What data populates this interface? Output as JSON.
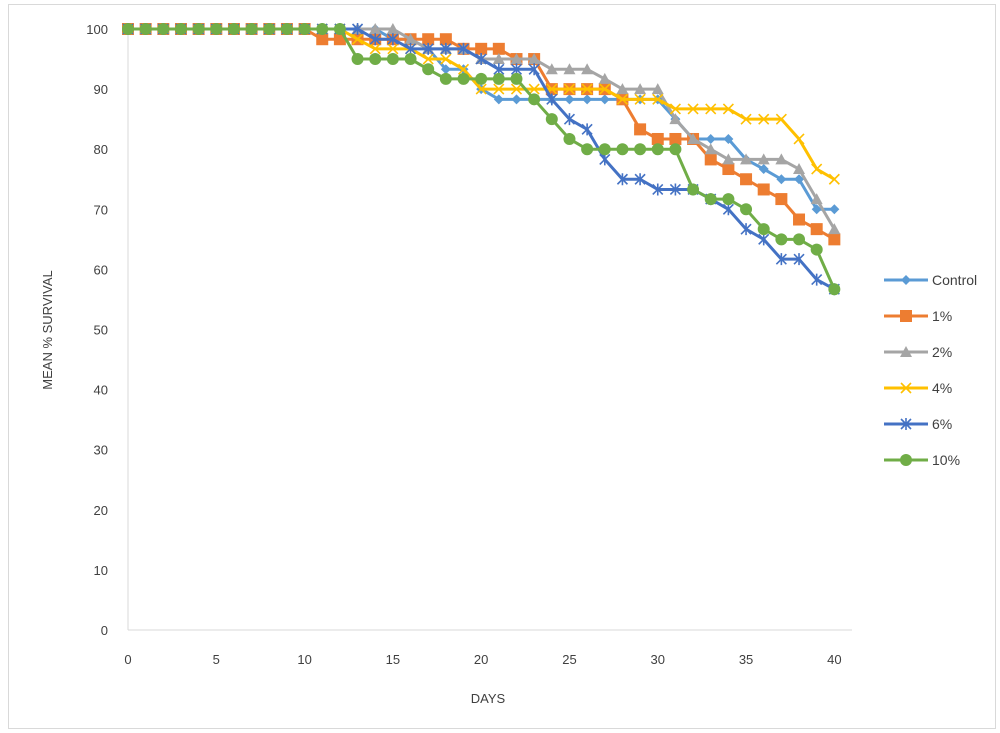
{
  "chart_data": {
    "type": "line",
    "title": "",
    "xlabel": "DAYS",
    "ylabel": "MEAN % SURVIVAL",
    "xlim": [
      0,
      41
    ],
    "ylim": [
      0,
      100
    ],
    "x_ticks": [
      0,
      5,
      10,
      15,
      20,
      25,
      30,
      35,
      40
    ],
    "y_ticks": [
      0,
      10,
      20,
      30,
      40,
      50,
      60,
      70,
      80,
      90,
      100
    ],
    "grid": false,
    "legend_position": "right",
    "x": [
      0,
      1,
      2,
      3,
      4,
      5,
      6,
      7,
      8,
      9,
      10,
      11,
      12,
      13,
      14,
      15,
      16,
      17,
      18,
      19,
      20,
      21,
      22,
      23,
      24,
      25,
      26,
      27,
      28,
      29,
      30,
      31,
      32,
      33,
      34,
      35,
      36,
      37,
      38,
      39,
      40
    ],
    "series": [
      {
        "name": "Control",
        "color": "#5b9bd5",
        "marker": "diamond",
        "values": [
          100,
          100,
          100,
          100,
          100,
          100,
          100,
          100,
          100,
          100,
          100,
          100,
          100,
          100,
          100,
          98.3,
          98.3,
          96.7,
          93.3,
          93.3,
          90,
          88.3,
          88.3,
          88.3,
          88.3,
          88.3,
          88.3,
          88.3,
          88.3,
          88.3,
          88.3,
          85,
          81.7,
          81.7,
          81.7,
          78.3,
          76.7,
          75,
          75,
          70,
          70
        ]
      },
      {
        "name": "1%",
        "color": "#ed7d31",
        "marker": "square",
        "values": [
          100,
          100,
          100,
          100,
          100,
          100,
          100,
          100,
          100,
          100,
          100,
          98.3,
          98.3,
          98.3,
          98.3,
          98.3,
          98.3,
          98.3,
          98.3,
          96.7,
          96.7,
          96.7,
          95,
          95,
          90,
          90,
          90,
          90,
          88.3,
          83.3,
          81.7,
          81.7,
          81.7,
          78.3,
          76.7,
          75,
          73.3,
          71.7,
          68.3,
          66.7,
          65
        ]
      },
      {
        "name": "2%",
        "color": "#a5a5a5",
        "marker": "triangle",
        "values": [
          100,
          100,
          100,
          100,
          100,
          100,
          100,
          100,
          100,
          100,
          100,
          100,
          100,
          100,
          100,
          100,
          98.3,
          96.7,
          96.7,
          96.7,
          95,
          95,
          95,
          95,
          93.3,
          93.3,
          93.3,
          91.7,
          90,
          90,
          90,
          85,
          81.7,
          80,
          78.3,
          78.3,
          78.3,
          78.3,
          76.7,
          71.7,
          66.7
        ]
      },
      {
        "name": "4%",
        "color": "#ffc000",
        "marker": "x",
        "values": [
          100,
          100,
          100,
          100,
          100,
          100,
          100,
          100,
          100,
          100,
          100,
          100,
          100,
          98.3,
          96.7,
          96.7,
          96.7,
          95,
          95,
          93.3,
          90,
          90,
          90,
          90,
          90,
          90,
          90,
          90,
          88.3,
          88.3,
          88.3,
          86.7,
          86.7,
          86.7,
          86.7,
          85,
          85,
          85,
          81.7,
          76.7,
          75
        ]
      },
      {
        "name": "6%",
        "color": "#4472c4",
        "marker": "star",
        "values": [
          100,
          100,
          100,
          100,
          100,
          100,
          100,
          100,
          100,
          100,
          100,
          100,
          100,
          100,
          98.3,
          98.3,
          96.7,
          96.7,
          96.7,
          96.7,
          95,
          93.3,
          93.3,
          93.3,
          88.3,
          85,
          83.3,
          78.3,
          75,
          75,
          73.3,
          73.3,
          73.3,
          71.7,
          70,
          66.7,
          65,
          61.7,
          61.7,
          58.3,
          56.7
        ]
      },
      {
        "name": "10%",
        "color": "#70ad47",
        "marker": "circle",
        "values": [
          100,
          100,
          100,
          100,
          100,
          100,
          100,
          100,
          100,
          100,
          100,
          100,
          100,
          95,
          95,
          95,
          95,
          93.3,
          91.7,
          91.7,
          91.7,
          91.7,
          91.7,
          88.3,
          85,
          81.7,
          80,
          80,
          80,
          80,
          80,
          80,
          73.3,
          71.7,
          71.7,
          70,
          66.7,
          65,
          65,
          63.3,
          56.7
        ]
      }
    ]
  }
}
